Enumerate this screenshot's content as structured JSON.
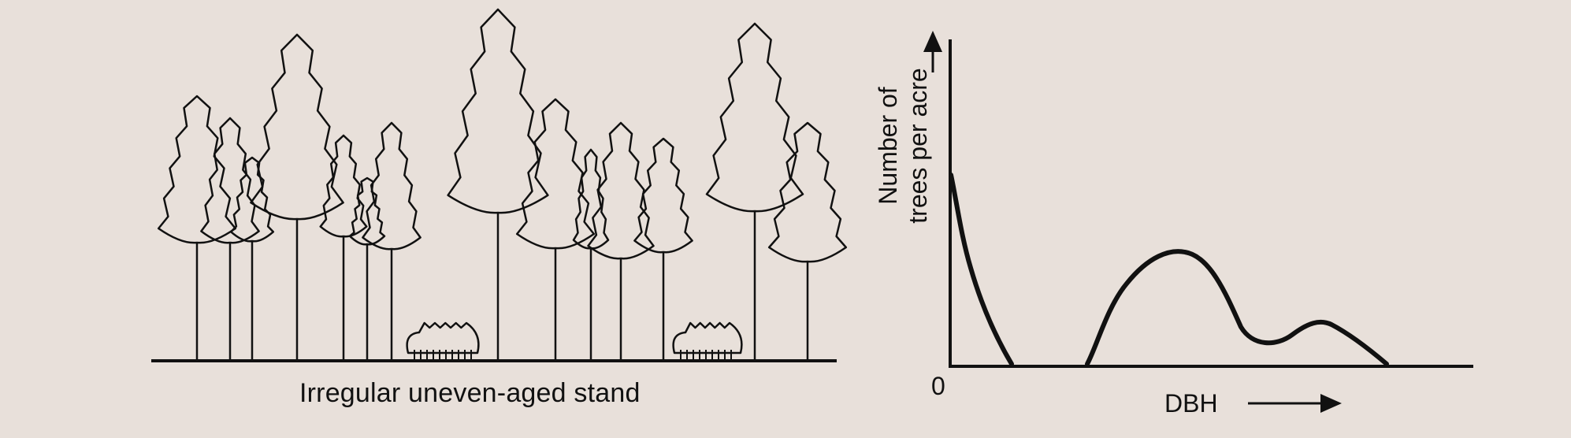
{
  "stand": {
    "caption": "Irregular uneven-aged stand"
  },
  "graph": {
    "origin_label": "0",
    "x_axis_label": "DBH",
    "y_axis_line1": "Number of",
    "y_axis_line2": "trees per acre"
  },
  "colors": {
    "background": "#e8e0da",
    "ink": "#111111"
  }
}
